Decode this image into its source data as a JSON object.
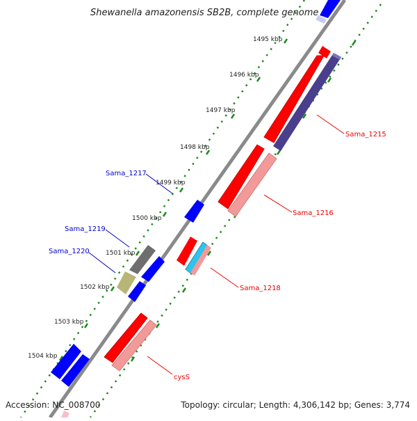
{
  "title": "Shewanella amazonensis SB2B, complete genome",
  "footer": {
    "accession": "Accession: NC_008700",
    "topology": "Topology: circular; Length: 4,306,142 bp; Genes: 3,774"
  },
  "ruler": {
    "ticks": [
      {
        "label": "1495 kbp"
      },
      {
        "label": "1496 kbp"
      },
      {
        "label": "1497 kbp"
      },
      {
        "label": "1498 kbp"
      },
      {
        "label": "1499 kbp"
      },
      {
        "label": "1500 kbp"
      },
      {
        "label": "1501 kbp"
      },
      {
        "label": "1502 kbp"
      },
      {
        "label": "1503 kbp"
      },
      {
        "label": "1504 kbp"
      }
    ]
  },
  "gene_labels": [
    {
      "name": "Sama_1215",
      "color": "#ee0000"
    },
    {
      "name": "Sama_1216",
      "color": "#ee0000"
    },
    {
      "name": "Sama_1217",
      "color": "#0000cc"
    },
    {
      "name": "Sama_1218",
      "color": "#ee0000"
    },
    {
      "name": "Sama_1219",
      "color": "#0000cc"
    },
    {
      "name": "Sama_1220",
      "color": "#0000cc"
    },
    {
      "name": "cysS",
      "color": "#ee0000"
    }
  ],
  "colors": {
    "backbone": "#8a8a8a",
    "dotted_track": "#1e8a1e",
    "forward_cds": "#ff0000",
    "forward_homolog": "#f29a9a",
    "reverse_cds": "#0000ff",
    "dark_blue_homolog": "#4a3f8c",
    "gray_homolog": "#6e6e6e",
    "olive_homolog": "#b8b676",
    "cyan_homolog": "#2fc4ee"
  }
}
